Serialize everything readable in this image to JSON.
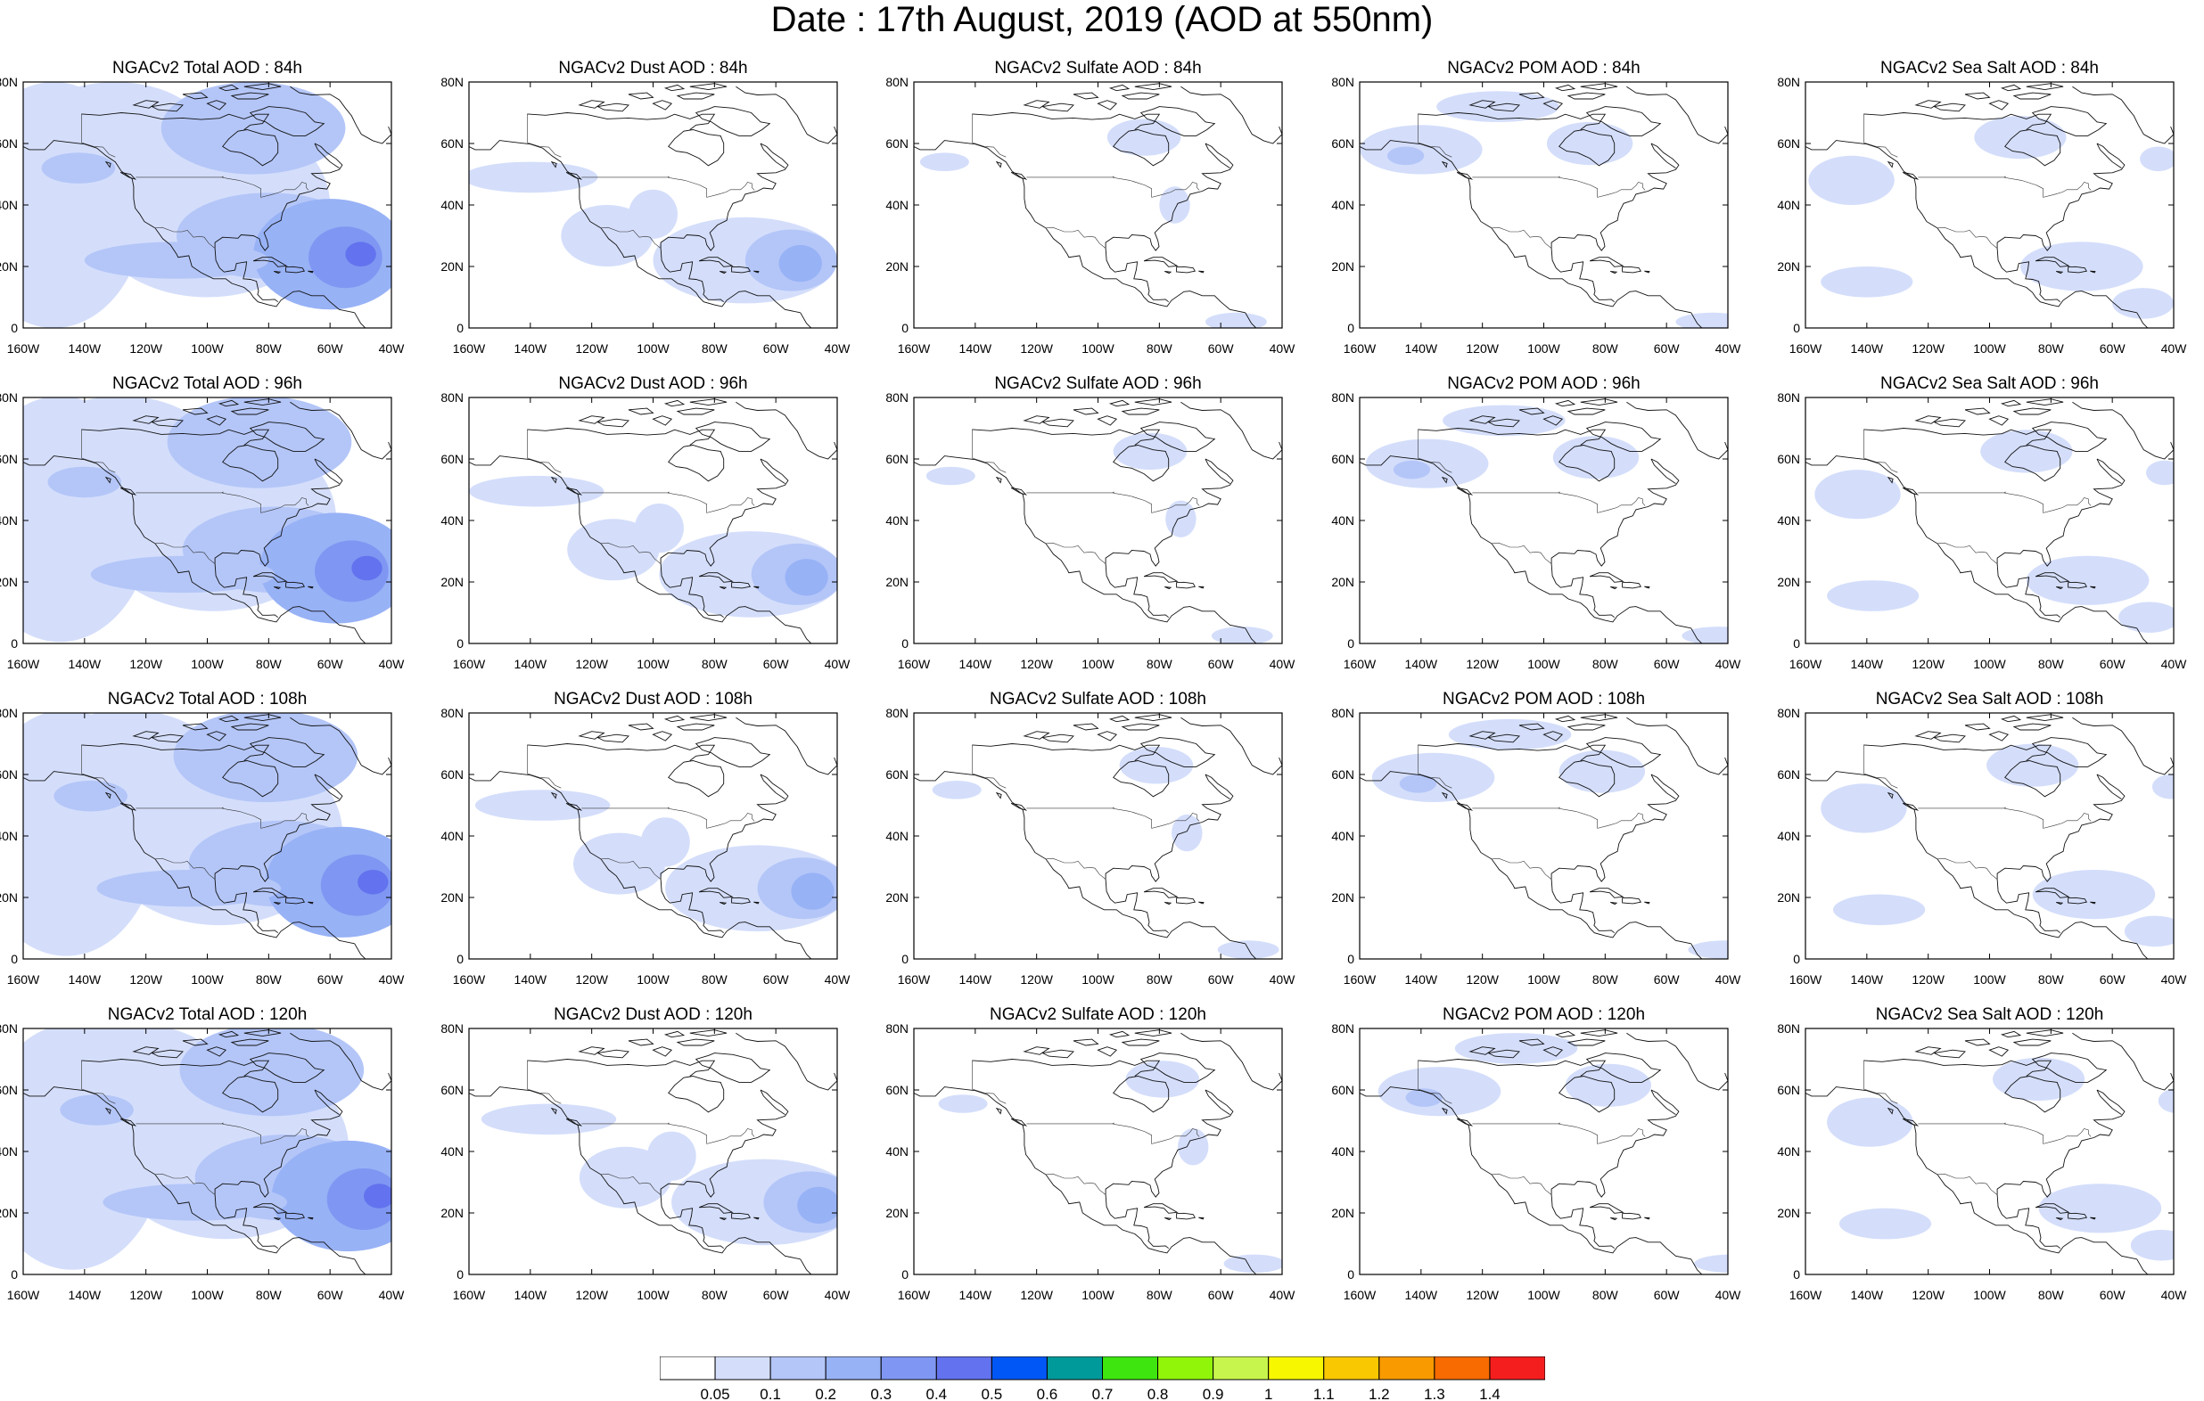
{
  "title": "Date : 17th August, 2019 (AOD at 550nm)",
  "panels": [
    {
      "title": "NGACv2 Total AOD : 84h",
      "species": "total",
      "lead": 84
    },
    {
      "title": "NGACv2 Dust AOD : 84h",
      "species": "dust",
      "lead": 84
    },
    {
      "title": "NGACv2 Sulfate AOD : 84h",
      "species": "sulfate",
      "lead": 84
    },
    {
      "title": "NGACv2 POM AOD : 84h",
      "species": "pom",
      "lead": 84
    },
    {
      "title": "NGACv2 Sea Salt AOD : 84h",
      "species": "seasalt",
      "lead": 84
    },
    {
      "title": "NGACv2 Total AOD : 96h",
      "species": "total",
      "lead": 96
    },
    {
      "title": "NGACv2 Dust AOD : 96h",
      "species": "dust",
      "lead": 96
    },
    {
      "title": "NGACv2 Sulfate AOD : 96h",
      "species": "sulfate",
      "lead": 96
    },
    {
      "title": "NGACv2 POM AOD : 96h",
      "species": "pom",
      "lead": 96
    },
    {
      "title": "NGACv2 Sea Salt AOD : 96h",
      "species": "seasalt",
      "lead": 96
    },
    {
      "title": "NGACv2 Total AOD : 108h",
      "species": "total",
      "lead": 108
    },
    {
      "title": "NGACv2 Dust AOD : 108h",
      "species": "dust",
      "lead": 108
    },
    {
      "title": "NGACv2 Sulfate AOD : 108h",
      "species": "sulfate",
      "lead": 108
    },
    {
      "title": "NGACv2 POM AOD : 108h",
      "species": "pom",
      "lead": 108
    },
    {
      "title": "NGACv2 Sea Salt AOD : 108h",
      "species": "seasalt",
      "lead": 108
    },
    {
      "title": "NGACv2 Total AOD : 120h",
      "species": "total",
      "lead": 120
    },
    {
      "title": "NGACv2 Dust AOD : 120h",
      "species": "dust",
      "lead": 120
    },
    {
      "title": "NGACv2 Sulfate AOD : 120h",
      "species": "sulfate",
      "lead": 120
    },
    {
      "title": "NGACv2 POM AOD : 120h",
      "species": "pom",
      "lead": 120
    },
    {
      "title": "NGACv2 Sea Salt  AOD : 120h",
      "species": "seasalt",
      "lead": 120
    }
  ],
  "map": {
    "lon_range": [
      -160,
      -40
    ],
    "lat_range": [
      0,
      80
    ],
    "lon_ticks": [
      "160W",
      "140W",
      "120W",
      "100W",
      "80W",
      "60W",
      "40W"
    ],
    "lat_ticks": [
      "0",
      "20N",
      "40N",
      "60N",
      "80N"
    ]
  },
  "colorbar": {
    "levels": [
      "0.05",
      "0.1",
      "0.2",
      "0.3",
      "0.4",
      "0.5",
      "0.6",
      "0.7",
      "0.8",
      "0.9",
      "1",
      "1.1",
      "1.2",
      "1.3",
      "1.4"
    ],
    "colors": [
      "#ffffff",
      "#d4defb",
      "#b4c6f8",
      "#98b2f6",
      "#7f97f2",
      "#6372ee",
      "#0057f5",
      "#009a9a",
      "#3fe50f",
      "#91f50a",
      "#c8f54d",
      "#f7f700",
      "#f9c800",
      "#f89a00",
      "#f76b00",
      "#f51e1e"
    ]
  }
}
